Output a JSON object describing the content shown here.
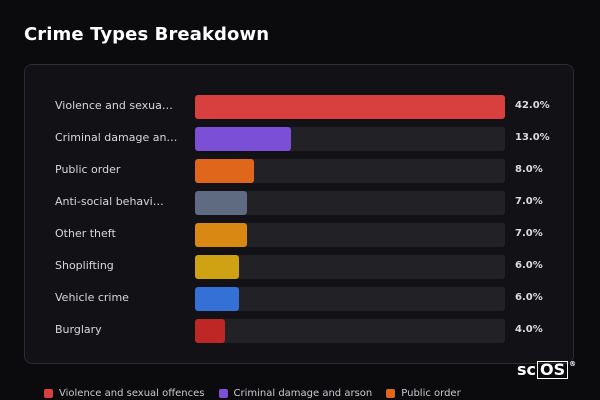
{
  "chart_data": {
    "type": "bar",
    "orientation": "horizontal",
    "title": "Crime Types Breakdown",
    "categories": [
      "Violence and sexua…",
      "Criminal damage an…",
      "Public order",
      "Anti-social behavi…",
      "Other theft",
      "Shoplifting",
      "Vehicle crime",
      "Burglary"
    ],
    "values": [
      42.0,
      13.0,
      8.0,
      7.0,
      7.0,
      6.0,
      6.0,
      4.0
    ],
    "value_labels": [
      "42.0%",
      "13.0%",
      "8.0%",
      "7.0%",
      "7.0%",
      "6.0%",
      "6.0%",
      "4.0%"
    ],
    "colors": [
      "#d7403f",
      "#7b4fd6",
      "#e0661c",
      "#5f6b80",
      "#d98913",
      "#cfa214",
      "#3470d6",
      "#bf2727"
    ],
    "xlim": [
      0,
      42
    ],
    "legend_position": "bottom",
    "legend": [
      {
        "label": "Violence and sexual offences",
        "color": "#d7403f"
      },
      {
        "label": "Criminal damage and arson",
        "color": "#7b4fd6"
      },
      {
        "label": "Public order",
        "color": "#e0661c"
      }
    ]
  },
  "brand": {
    "logo_prefix": "sc",
    "logo_boxed": "OS",
    "logo_mark": "®"
  }
}
